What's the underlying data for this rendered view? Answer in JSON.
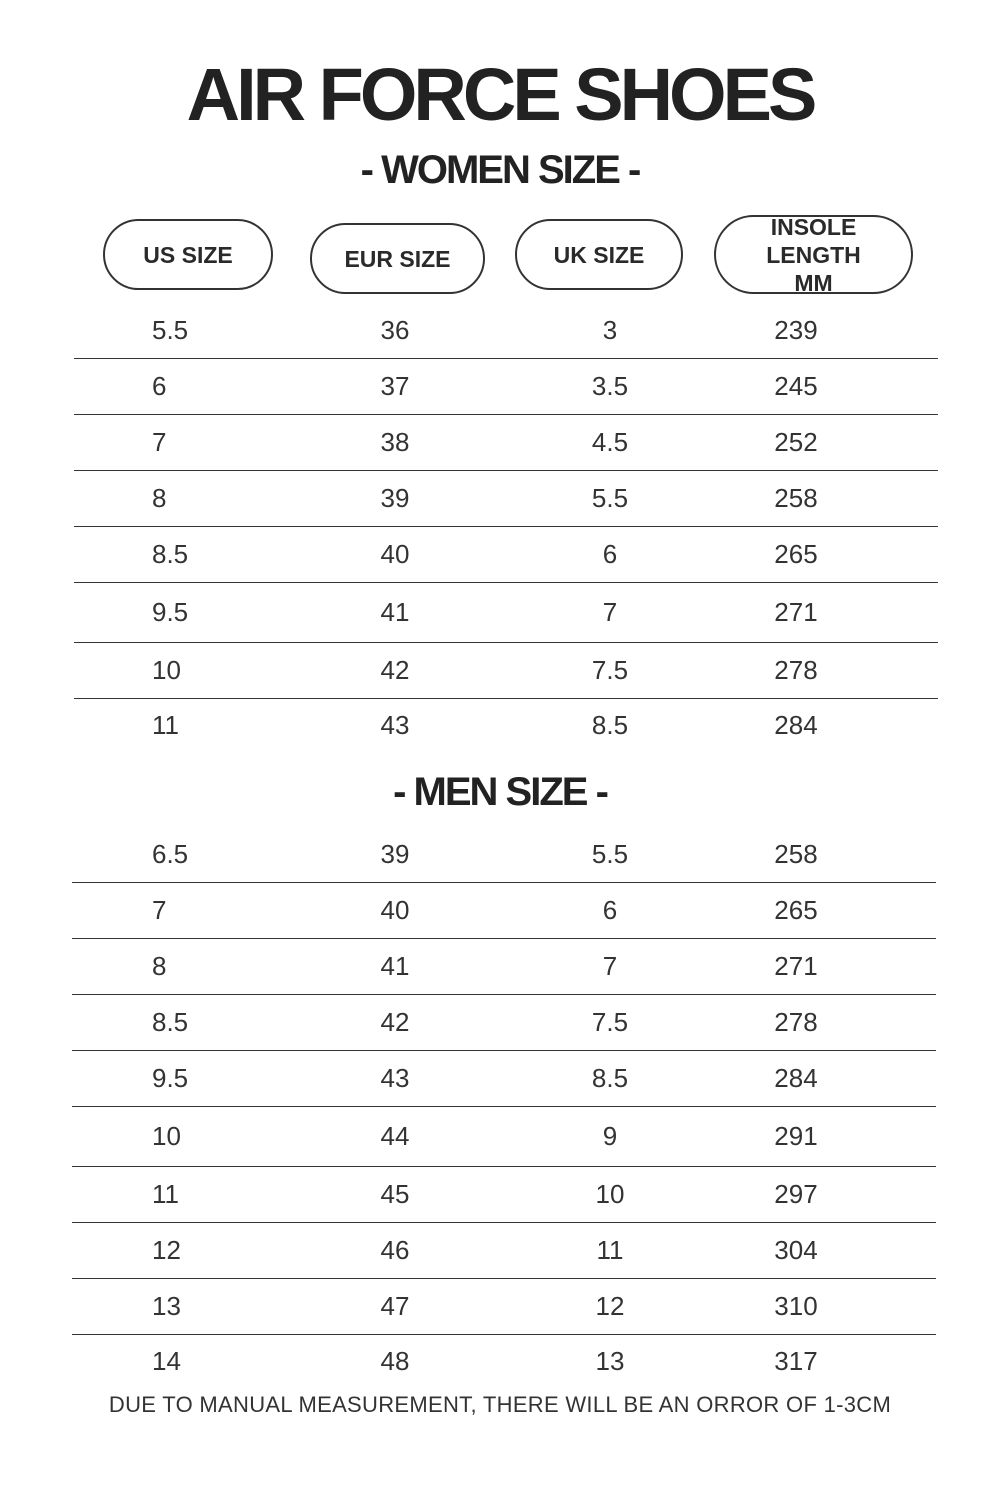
{
  "title": "AIR FORCE SHOES",
  "women_heading": "- WOMEN SIZE -",
  "men_heading": "- MEN SIZE -",
  "headers": [
    "US SIZE",
    "EUR SIZE",
    "UK SIZE",
    "INSOLE LENGTH MM"
  ],
  "women_rows": [
    [
      "5.5",
      "36",
      "3",
      "239"
    ],
    [
      "6",
      "37",
      "3.5",
      "245"
    ],
    [
      "7",
      "38",
      "4.5",
      "252"
    ],
    [
      "8",
      "39",
      "5.5",
      "258"
    ],
    [
      "8.5",
      "40",
      "6",
      "265"
    ],
    [
      "9.5",
      "41",
      "7",
      "271"
    ],
    [
      "10",
      "42",
      "7.5",
      "278"
    ],
    [
      "11",
      "43",
      "8.5",
      "284"
    ]
  ],
  "men_rows": [
    [
      "6.5",
      "39",
      "5.5",
      "258"
    ],
    [
      "7",
      "40",
      "6",
      "265"
    ],
    [
      "8",
      "41",
      "7",
      "271"
    ],
    [
      "8.5",
      "42",
      "7.5",
      "278"
    ],
    [
      "9.5",
      "43",
      "8.5",
      "284"
    ],
    [
      "10",
      "44",
      "9",
      "291"
    ],
    [
      "11",
      "45",
      "10",
      "297"
    ],
    [
      "12",
      "46",
      "11",
      "304"
    ],
    [
      "13",
      "47",
      "12",
      "310"
    ],
    [
      "14",
      "48",
      "13",
      "317"
    ]
  ],
  "footer": "DUE TO MANUAL MEASUREMENT, THERE WILL BE AN ORROR OF 1-3CM"
}
